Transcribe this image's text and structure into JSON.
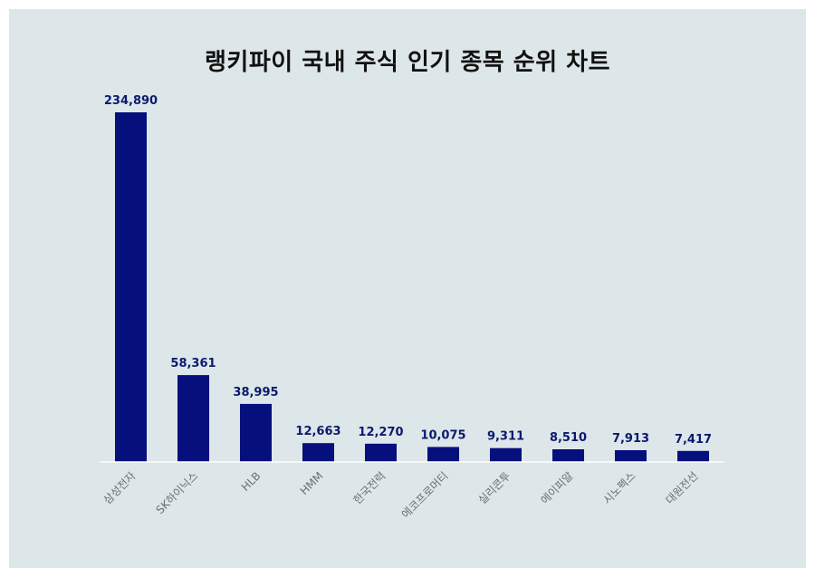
{
  "chart_data": {
    "type": "bar",
    "title": "랭키파이 국내 주식 인기 종목 순위 차트",
    "xlabel": "",
    "ylabel": "",
    "categories": [
      "삼성전자",
      "SK하이닉스",
      "HLB",
      "HMM",
      "한국전력",
      "에코프로머티",
      "실리콘투",
      "에이피알",
      "시노펙스",
      "대원전선"
    ],
    "values": [
      234890,
      58361,
      38995,
      12663,
      12270,
      10075,
      9311,
      8510,
      7913,
      7417
    ],
    "value_labels": [
      "234,890",
      "58,361",
      "38,995",
      "12,663",
      "12,270",
      "10,075",
      "9,311",
      "8,510",
      "7,913",
      "7,417"
    ],
    "ylim": [
      0,
      234890
    ],
    "grid": false,
    "legend": "none",
    "colors": {
      "bar": "#06107c",
      "background": "#dde6e8"
    }
  }
}
